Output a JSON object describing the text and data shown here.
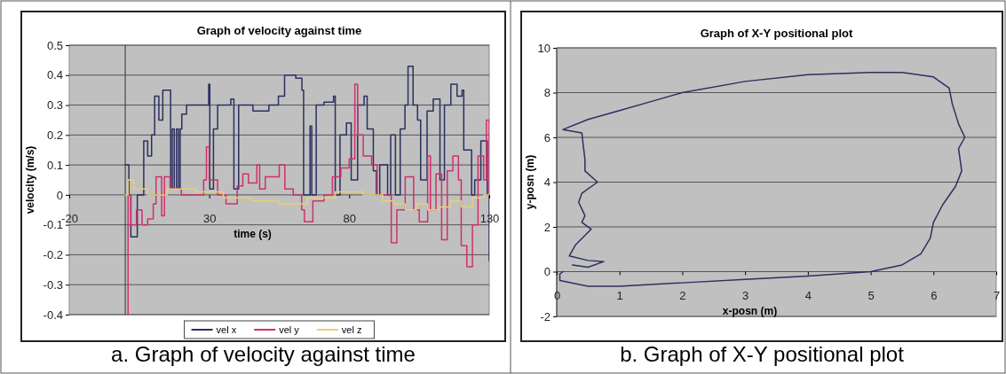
{
  "chart_data": [
    {
      "type": "step",
      "title": "Graph of velocity against time",
      "xlabel": "time (s)",
      "ylabel": "velocity (m/s)",
      "xlim": [
        -20,
        130
      ],
      "xticks": [
        -20,
        30,
        80,
        130
      ],
      "ylim": [
        -0.4,
        0.5
      ],
      "yticks": [
        -0.4,
        -0.3,
        -0.2,
        -0.1,
        0,
        0.1,
        0.2,
        0.3,
        0.4,
        0.5
      ],
      "grid": "y",
      "legend": "bottom",
      "line_style": "solid",
      "annotations": [
        "a. Graph of velocity against time"
      ],
      "series": [
        {
          "name": "vel x",
          "color": "#2b3060",
          "x": [
            0,
            1.3,
            2,
            4.3,
            6.6,
            8,
            9.4,
            10.5,
            12,
            13.4,
            16.2,
            16.8,
            17.5,
            18.3,
            19,
            19.6,
            20.2,
            21.9,
            29.8,
            30.2,
            31.5,
            33,
            37.7,
            38.8,
            40.5,
            45.6,
            51.3,
            54.7,
            56.9,
            60.9,
            63.1,
            63.7,
            66,
            66.6,
            68.2,
            71,
            74.4,
            75,
            76.7,
            79,
            80.7,
            83,
            85.3,
            86.4,
            88.6,
            89.7,
            90.9,
            93.7,
            94.8,
            96.5,
            98.2,
            99.9,
            101,
            102.8,
            104.4,
            105.5,
            107.8,
            110,
            112.4,
            114,
            116.3,
            118.5,
            120.3,
            120.9,
            123.7,
            124.8,
            127,
            129.3,
            130
          ],
          "values": [
            0.1,
            0,
            -0.14,
            0,
            0.18,
            0.13,
            0.2,
            0.33,
            0.25,
            0.35,
            0.02,
            0.22,
            0.02,
            0.22,
            0.02,
            0.22,
            0.27,
            0.3,
            0.37,
            0.02,
            0.22,
            0.3,
            0.32,
            0.02,
            0.3,
            0.28,
            0.3,
            0.33,
            0.4,
            0.39,
            0.35,
            0,
            0.23,
            0,
            0.3,
            0.31,
            0.33,
            0,
            0.2,
            0.24,
            0.05,
            0.3,
            0.33,
            0.22,
            0.08,
            0,
            0.1,
            0,
            0.2,
            0,
            0.22,
            0.3,
            0.43,
            0.3,
            0.25,
            0.05,
            0.28,
            0.32,
            0.05,
            0.3,
            0.37,
            0.33,
            0.35,
            0.15,
            0,
            0.05,
            0.18,
            0,
            -0.22
          ]
        },
        {
          "name": "vel y",
          "color": "#d0306e",
          "x": [
            0,
            1,
            2,
            4,
            6,
            8,
            10,
            11,
            13,
            14,
            16,
            20,
            28,
            29,
            30,
            33,
            36,
            40,
            42,
            44,
            47,
            48,
            50,
            52,
            55,
            57,
            60,
            63,
            64,
            67,
            71,
            74,
            77,
            80,
            82,
            83,
            85,
            88,
            90,
            93,
            95,
            97,
            100,
            103,
            105,
            108,
            109,
            111,
            113,
            115,
            117,
            119,
            120,
            122,
            124,
            126,
            128,
            129,
            130
          ],
          "values": [
            -0.4,
            0,
            -0.1,
            -0.05,
            -0.1,
            -0.08,
            -0.03,
            0.06,
            -0.07,
            0.06,
            0.02,
            0,
            0.05,
            0.16,
            0.05,
            0,
            -0.03,
            0.03,
            0.07,
            0.04,
            0.1,
            0.02,
            0.06,
            0.06,
            0.1,
            0.02,
            0,
            -0.05,
            -0.09,
            -0.02,
            0,
            0.06,
            0.09,
            0.12,
            0.37,
            0.2,
            0.13,
            0.1,
            0,
            0,
            -0.16,
            -0.05,
            0.06,
            -0.05,
            -0.09,
            0.13,
            -0.05,
            0.07,
            -0.15,
            0.08,
            0.13,
            0.05,
            -0.17,
            -0.24,
            -0.1,
            0.13,
            0.05,
            0.25,
            0
          ]
        },
        {
          "name": "vel z",
          "color": "#e8d070",
          "x": [
            0,
            1,
            3,
            8,
            15,
            25,
            35,
            45,
            55,
            65,
            75,
            85,
            92,
            96,
            100,
            104,
            108,
            112,
            116,
            120,
            124,
            128,
            130
          ],
          "values": [
            0,
            0.05,
            0.02,
            0,
            0.02,
            0.01,
            -0.01,
            -0.02,
            -0.03,
            -0.01,
            0.01,
            0,
            -0.02,
            -0.03,
            -0.05,
            -0.03,
            -0.05,
            -0.04,
            -0.02,
            -0.04,
            -0.01,
            0,
            0
          ]
        }
      ]
    },
    {
      "type": "line",
      "title": "Graph of X-Y positional plot",
      "xlabel": "x-posn (m)",
      "ylabel": "y-posn (m)",
      "xlim": [
        0,
        7
      ],
      "xticks": [
        0,
        1,
        2,
        3,
        4,
        5,
        6,
        7
      ],
      "ylim": [
        -2,
        10
      ],
      "yticks": [
        -2,
        0,
        2,
        4,
        6,
        8,
        10
      ],
      "grid": "y",
      "legend": false,
      "line_style": "solid",
      "annotations": [
        "b. Graph of X-Y positional plot"
      ],
      "series": [
        {
          "color": "#2b3060",
          "x": [
            0.1,
            0.05,
            0.05,
            0.5,
            1,
            2,
            3,
            4,
            5,
            5.5,
            5.8,
            5.95,
            6,
            6.15,
            6.35,
            6.45,
            6.4,
            6.5,
            6.4,
            6.3,
            6.25,
            6,
            5.5,
            5,
            4,
            3,
            2,
            1.5,
            1,
            0.5,
            0.1,
            0.4,
            0.45,
            0.45,
            0.65,
            0.4,
            0.35,
            0.45,
            0.4,
            0.55,
            0.3,
            0.2,
            0.5,
            0.75,
            0.5,
            0.25
          ],
          "values": [
            0,
            -0.1,
            -0.4,
            -0.65,
            -0.65,
            -0.5,
            -0.35,
            -0.2,
            0,
            0.3,
            0.8,
            1.5,
            2.2,
            3,
            3.8,
            4.5,
            5.5,
            6,
            6.6,
            7.5,
            8.2,
            8.7,
            8.9,
            8.9,
            8.8,
            8.5,
            8,
            7.6,
            7.2,
            6.8,
            6.35,
            6.2,
            5,
            4.5,
            4,
            3.5,
            3.1,
            2.5,
            2.2,
            1.9,
            1.2,
            0.7,
            0.5,
            0.45,
            0.2,
            0.3
          ]
        }
      ]
    }
  ]
}
